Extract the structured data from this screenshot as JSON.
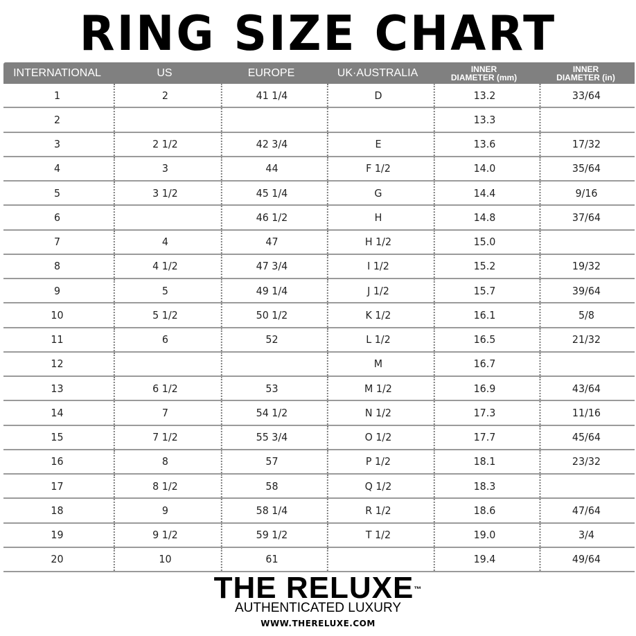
{
  "title": "RING SIZE CHART",
  "headers": [
    "INTERNATIONAL",
    "US",
    "EUROPE",
    "UK·AUSTRALIA",
    "INNER DIAMETER (mm)",
    "INNER DIAMETER (in)"
  ],
  "header_bg": "#808080",
  "rows": [
    [
      "1",
      "2",
      "41 1/4",
      "D",
      "13.2",
      "33/64"
    ],
    [
      "2",
      "",
      "",
      "",
      "13.3",
      ""
    ],
    [
      "3",
      "2 1/2",
      "42 3/4",
      "E",
      "13.6",
      "17/32"
    ],
    [
      "4",
      "3",
      "44",
      "F 1/2",
      "14.0",
      "35/64"
    ],
    [
      "5",
      "3 1/2",
      "45 1/4",
      "G",
      "14.4",
      "9/16"
    ],
    [
      "6",
      "",
      "46 1/2",
      "H",
      "14.8",
      "37/64"
    ],
    [
      "7",
      "4",
      "47",
      "H 1/2",
      "15.0",
      ""
    ],
    [
      "8",
      "4 1/2",
      "47 3/4",
      "I 1/2",
      "15.2",
      "19/32"
    ],
    [
      "9",
      "5",
      "49 1/4",
      "J 1/2",
      "15.7",
      "39/64"
    ],
    [
      "10",
      "5 1/2",
      "50 1/2",
      "K 1/2",
      "16.1",
      "5/8"
    ],
    [
      "11",
      "6",
      "52",
      "L 1/2",
      "16.5",
      "21/32"
    ],
    [
      "12",
      "",
      "",
      "M",
      "16.7",
      ""
    ],
    [
      "13",
      "6 1/2",
      "53",
      "M 1/2",
      "16.9",
      "43/64"
    ],
    [
      "14",
      "7",
      "54 1/2",
      "N 1/2",
      "17.3",
      "11/16"
    ],
    [
      "15",
      "7 1/2",
      "55 3/4",
      "O 1/2",
      "17.7",
      "45/64"
    ],
    [
      "16",
      "8",
      "57",
      "P 1/2",
      "18.1",
      "23/32"
    ],
    [
      "17",
      "8 1/2",
      "58",
      "Q 1/2",
      "18.3",
      ""
    ],
    [
      "18",
      "9",
      "58 1/4",
      "R 1/2",
      "18.6",
      "47/64"
    ],
    [
      "19",
      "9 1/2",
      "59 1/2",
      "T 1/2",
      "19.0",
      "3/4"
    ],
    [
      "20",
      "10",
      "61",
      "",
      "19.4",
      "49/64"
    ]
  ],
  "brand": {
    "logo": "THE RELUXE",
    "tm": "™",
    "tagline": "AUTHENTICATED LUXURY",
    "url": "WWW.THERELUXE.COM"
  }
}
